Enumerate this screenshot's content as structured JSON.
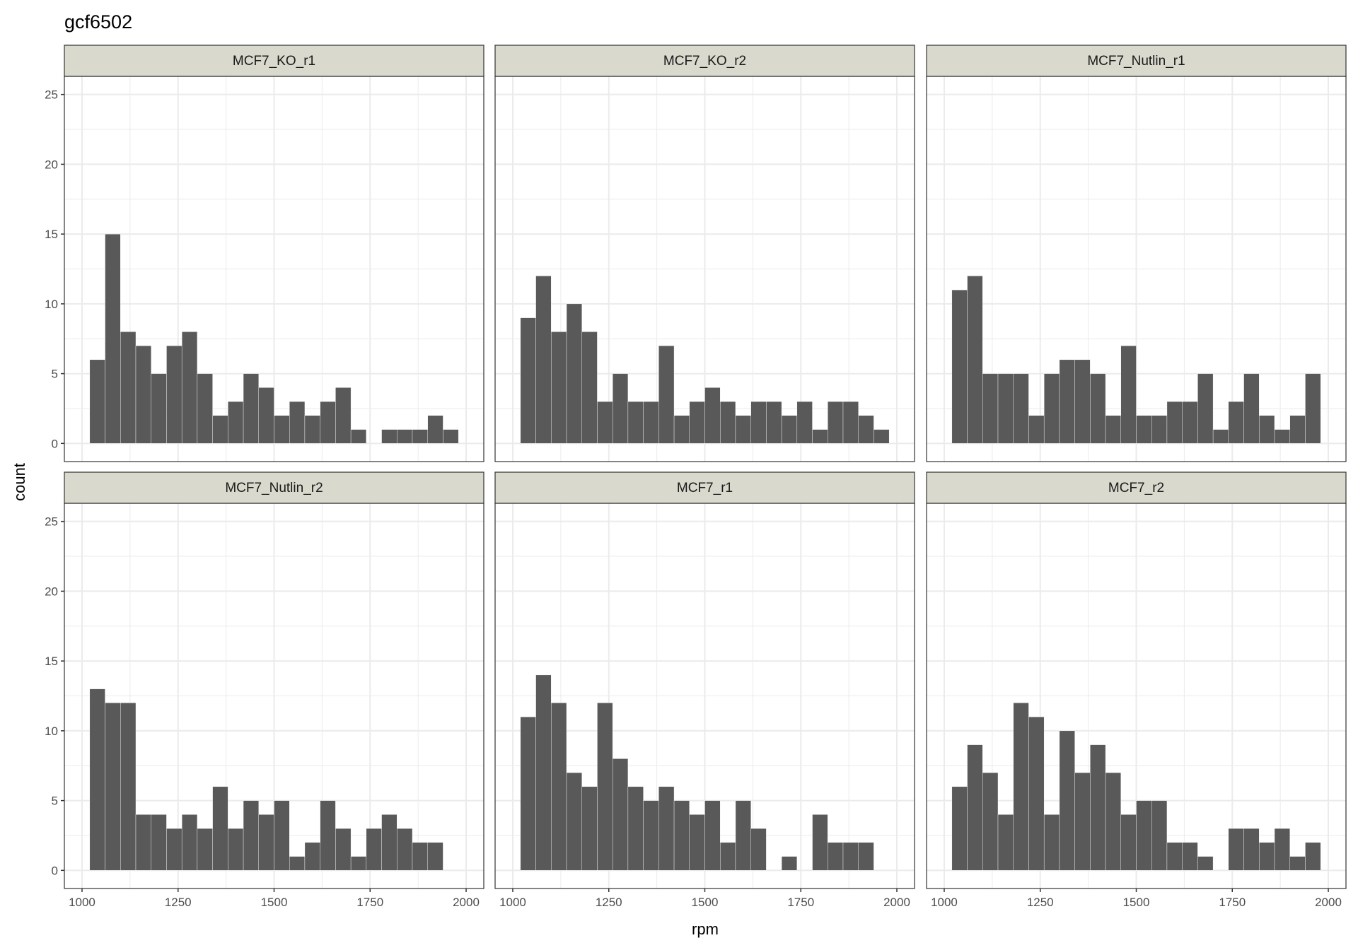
{
  "chart_data": {
    "type": "bar",
    "subtype": "faceted-histogram",
    "title": "gcf6502",
    "xlabel": "rpm",
    "ylabel": "count",
    "xlim": [
      954,
      2046
    ],
    "ylim": [
      -1.3,
      26.3
    ],
    "x_ticks": [
      1000,
      1250,
      1500,
      1750,
      2000
    ],
    "y_ticks": [
      0,
      5,
      10,
      15,
      20,
      25
    ],
    "bin_start": 1020,
    "bin_width": 40,
    "grid": true,
    "colors": {
      "bar": "#595959",
      "strip": "#D9D9CD",
      "grid": "#EBEBEB",
      "border": "#333333"
    },
    "facets": [
      {
        "name": "MCF7_KO_r1",
        "values": [
          6,
          15,
          8,
          7,
          5,
          7,
          8,
          5,
          2,
          3,
          5,
          4,
          2,
          3,
          2,
          3,
          4,
          1,
          0,
          1,
          1,
          1,
          2,
          1
        ]
      },
      {
        "name": "MCF7_KO_r2",
        "values": [
          9,
          12,
          8,
          10,
          8,
          3,
          5,
          3,
          3,
          7,
          2,
          3,
          4,
          3,
          2,
          3,
          3,
          2,
          3,
          1,
          3,
          3,
          2,
          1
        ]
      },
      {
        "name": "MCF7_Nutlin_r1",
        "values": [
          11,
          12,
          5,
          5,
          5,
          2,
          5,
          6,
          6,
          5,
          2,
          7,
          2,
          2,
          3,
          3,
          5,
          1,
          3,
          5,
          2,
          1,
          2,
          5
        ]
      },
      {
        "name": "MCF7_Nutlin_r2",
        "values": [
          13,
          12,
          12,
          4,
          4,
          3,
          4,
          3,
          6,
          3,
          5,
          4,
          5,
          1,
          2,
          5,
          3,
          1,
          3,
          4,
          3,
          2,
          2,
          0
        ]
      },
      {
        "name": "MCF7_r1",
        "values": [
          11,
          14,
          12,
          7,
          6,
          12,
          8,
          6,
          5,
          6,
          5,
          4,
          5,
          2,
          5,
          3,
          0,
          1,
          0,
          4,
          2,
          2,
          2,
          0
        ]
      },
      {
        "name": "MCF7_r2",
        "values": [
          6,
          9,
          7,
          4,
          12,
          11,
          4,
          10,
          7,
          9,
          7,
          4,
          5,
          5,
          2,
          2,
          1,
          0,
          3,
          3,
          2,
          3,
          1,
          2
        ]
      }
    ]
  }
}
